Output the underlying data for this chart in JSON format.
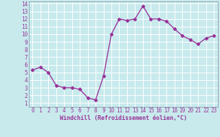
{
  "x": [
    0,
    1,
    2,
    3,
    4,
    5,
    6,
    7,
    8,
    9,
    10,
    11,
    12,
    13,
    14,
    15,
    16,
    17,
    18,
    19,
    20,
    21,
    22,
    23
  ],
  "y": [
    5.3,
    5.7,
    5.0,
    3.3,
    3.0,
    3.0,
    2.8,
    1.7,
    1.4,
    4.5,
    10.0,
    12.0,
    11.8,
    12.0,
    13.7,
    12.0,
    12.0,
    11.7,
    10.7,
    9.8,
    9.3,
    8.7,
    9.5,
    9.8
  ],
  "line_color": "#993399",
  "marker": "D",
  "marker_size": 2.2,
  "bg_color": "#c8eaed",
  "grid_color": "#ffffff",
  "xlabel": "Windchill (Refroidissement éolien,°C)",
  "xlabel_color": "#993399",
  "tick_color": "#993399",
  "ylim_min": 0.5,
  "ylim_max": 14.3,
  "xlim_min": -0.5,
  "xlim_max": 23.5,
  "yticks": [
    1,
    2,
    3,
    4,
    5,
    6,
    7,
    8,
    9,
    10,
    11,
    12,
    13,
    14
  ],
  "xticks": [
    0,
    1,
    2,
    3,
    4,
    5,
    6,
    7,
    8,
    9,
    10,
    11,
    12,
    13,
    14,
    15,
    16,
    17,
    18,
    19,
    20,
    21,
    22,
    23
  ],
  "tick_fontsize": 5.5,
  "xlabel_fontsize": 6.0,
  "linewidth": 1.0
}
